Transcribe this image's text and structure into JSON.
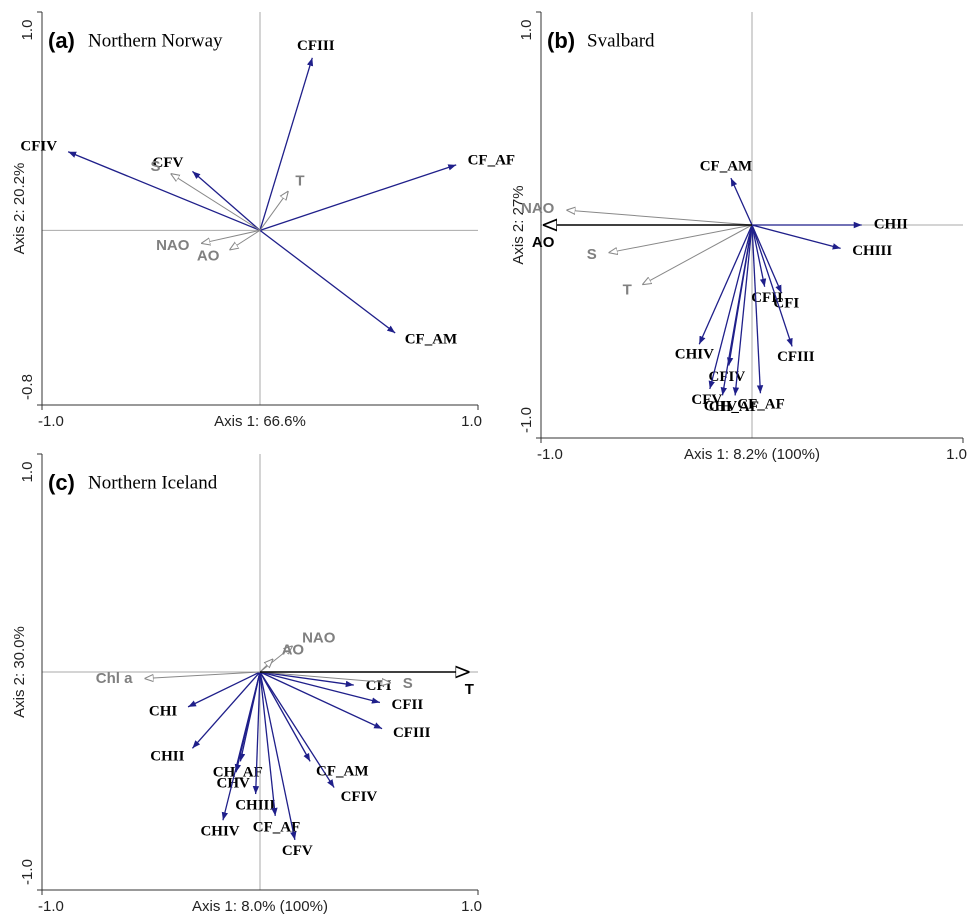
{
  "chart_data": [
    {
      "type": "biplot",
      "panel_label": "(a)",
      "title": "Northern Norway",
      "xlabel": "Axis 1: 66.6%",
      "ylabel": "Axis 2: 20.2%",
      "xlim": [
        -1,
        1
      ],
      "ylim": [
        -0.8,
        1
      ],
      "xticks": [
        {
          "value": -1,
          "label": "-1.0"
        },
        {
          "value": 1,
          "label": "1.0"
        }
      ],
      "yticks": [
        -0.8,
        {
          "value": 1,
          "label": "1.0"
        }
      ],
      "series": [
        {
          "color": "#1f1f8a",
          "style": "species",
          "labels": [
            "CFIII",
            "CF_AF",
            "CFIV",
            "CFV",
            "CF_AM"
          ],
          "x": [
            0.24,
            0.9,
            -0.88,
            -0.31,
            0.62
          ],
          "y": [
            0.79,
            0.3,
            0.36,
            0.27,
            -0.47
          ]
        },
        {
          "color": "#888888",
          "style": "environment",
          "labels": [
            "S",
            "T",
            "NAO",
            "AO"
          ],
          "x": [
            -0.41,
            0.13,
            -0.27,
            -0.14
          ],
          "y": [
            0.26,
            0.18,
            -0.06,
            -0.09
          ]
        }
      ]
    },
    {
      "type": "biplot",
      "panel_label": "(b)",
      "title": "Svalbard",
      "xlabel": "Axis 1: 8.2% (100%)",
      "ylabel": "Axis 2: 27%",
      "xlim": [
        -1,
        1
      ],
      "ylim": [
        -1,
        1
      ],
      "xticks": [
        {
          "value": -1,
          "label": "-1.0"
        },
        {
          "value": 1,
          "label": "1.0"
        }
      ],
      "yticks": [
        {
          "value": -1,
          "label": "-1.0"
        },
        {
          "value": 1,
          "label": "1.0"
        }
      ],
      "series": [
        {
          "color": "#1f1f8a",
          "style": "species",
          "labels": [
            "CF_AM",
            "CHII",
            "CHIII",
            "CFI",
            "CFII",
            "CFIII",
            "CHIV",
            "CFIV",
            "CFV",
            "CHV",
            "CH_AF",
            "CF_AF"
          ],
          "x": [
            -0.1,
            0.52,
            0.42,
            0.14,
            0.06,
            0.19,
            -0.25,
            -0.11,
            -0.2,
            -0.14,
            -0.08,
            0.04
          ],
          "y": [
            0.22,
            0,
            -0.11,
            -0.32,
            -0.29,
            -0.57,
            -0.56,
            -0.66,
            -0.77,
            -0.8,
            -0.8,
            -0.79
          ]
        },
        {
          "color": "#888888",
          "style": "environment",
          "labels": [
            "NAO",
            "S",
            "T"
          ],
          "x": [
            -0.88,
            -0.68,
            -0.52
          ],
          "y": [
            0.07,
            -0.13,
            -0.28
          ]
        },
        {
          "color": "#000000",
          "style": "key",
          "labels": [
            "AO"
          ],
          "x": [
            -0.99
          ],
          "y": [
            0
          ]
        }
      ]
    },
    {
      "type": "biplot",
      "panel_label": "(c)",
      "title": "Northern Iceland",
      "xlabel": "Axis 1: 8.0% (100%)",
      "ylabel": "Axis 2: 30.0%",
      "xlim": [
        -1,
        1
      ],
      "ylim": [
        -1,
        1
      ],
      "xticks": [
        {
          "value": -1,
          "label": "-1.0"
        },
        {
          "value": 1,
          "label": "1.0"
        }
      ],
      "yticks": [
        {
          "value": -1,
          "label": "-1.0"
        },
        {
          "value": 1,
          "label": "1.0"
        }
      ],
      "series": [
        {
          "color": "#1f1f8a",
          "style": "species",
          "labels": [
            "CHI",
            "CHII",
            "CH_AF",
            "CHV",
            "CHIV",
            "CHIII",
            "CF_AF",
            "CFV",
            "CFIV",
            "CF_AM",
            "CFI",
            "CFII",
            "CFIII"
          ],
          "x": [
            -0.33,
            -0.31,
            -0.09,
            -0.11,
            -0.17,
            -0.02,
            0.07,
            0.16,
            0.34,
            0.23,
            0.43,
            0.55,
            0.56
          ],
          "y": [
            -0.16,
            -0.35,
            -0.41,
            -0.46,
            -0.68,
            -0.56,
            -0.66,
            -0.77,
            -0.53,
            -0.41,
            -0.06,
            -0.14,
            -0.26
          ]
        },
        {
          "color": "#888888",
          "style": "environment",
          "labels": [
            "NAO",
            "AO",
            "Chl a",
            "S"
          ],
          "x": [
            0.15,
            0.06,
            -0.53,
            0.6
          ],
          "y": [
            0.12,
            0.06,
            -0.03,
            -0.05
          ]
        },
        {
          "color": "#000000",
          "style": "key",
          "labels": [
            "T"
          ],
          "x": [
            0.96
          ],
          "y": [
            0
          ]
        }
      ]
    }
  ]
}
